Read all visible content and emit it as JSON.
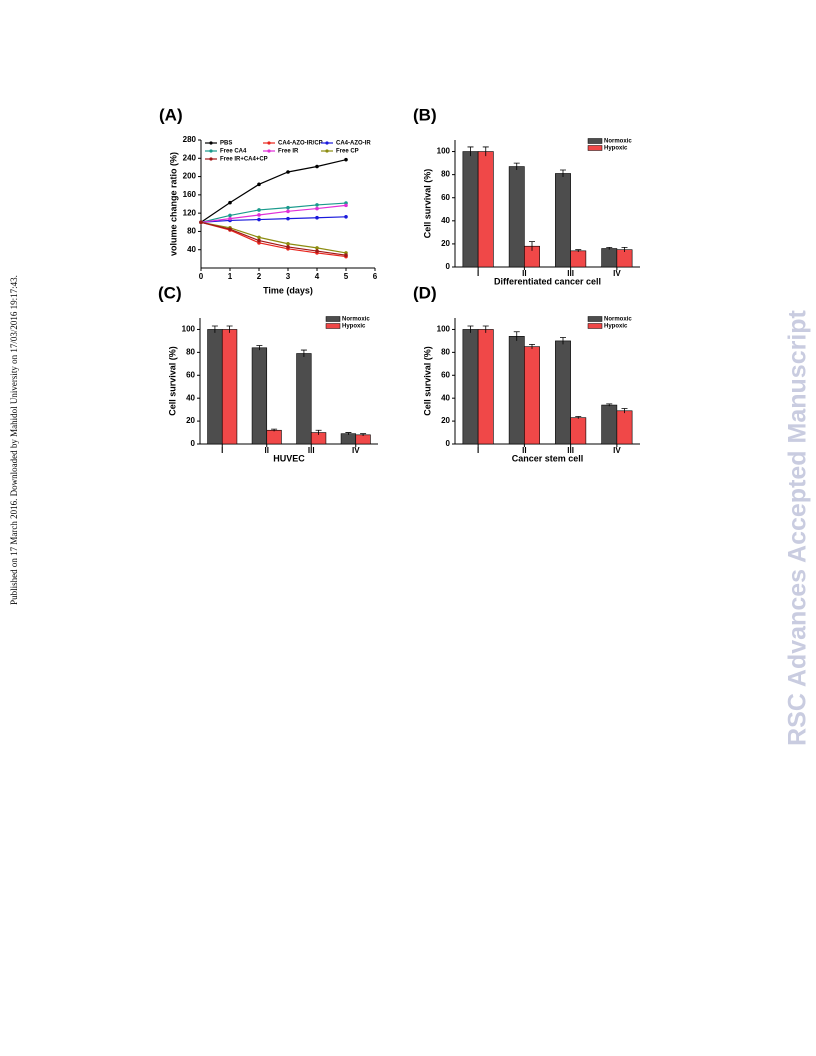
{
  "side_note": "Published on 17 March 2016. Downloaded by Mahidol University on 17/03/2016 19:17:43.",
  "watermark": "RSC Advances Accepted Manuscript",
  "chart_data": [
    {
      "type": "line",
      "panel": "(A)",
      "x_label": "Time (days)",
      "y_label": "volume change ratio (%)",
      "x": [
        0,
        1,
        2,
        3,
        4,
        5
      ],
      "xlim": [
        0,
        6
      ],
      "xticks": [
        0,
        1,
        2,
        3,
        4,
        5,
        6
      ],
      "ylim": [
        0,
        280
      ],
      "yticks": [
        40,
        80,
        120,
        160,
        200,
        240,
        280
      ],
      "series": [
        {
          "name": "PBS",
          "color": "#000000",
          "values": [
            100,
            143,
            183,
            210,
            222,
            237
          ]
        },
        {
          "name": "CA4-AZO-IR/CP",
          "color": "#e8241c",
          "values": [
            100,
            83,
            55,
            42,
            33,
            25
          ]
        },
        {
          "name": "CA4-AZO-IR",
          "color": "#1a1adc",
          "values": [
            100,
            104,
            106,
            108,
            110,
            112
          ]
        },
        {
          "name": "Free CA4",
          "color": "#1a9a8c",
          "values": [
            100,
            115,
            127,
            132,
            138,
            142
          ]
        },
        {
          "name": "Free IR",
          "color": "#e030d8",
          "values": [
            100,
            108,
            116,
            124,
            130,
            137
          ]
        },
        {
          "name": "Free CP",
          "color": "#8c8c10",
          "values": [
            100,
            88,
            67,
            53,
            44,
            33
          ]
        },
        {
          "name": "Free IR+CA4+CP",
          "color": "#a01818",
          "values": [
            100,
            85,
            60,
            46,
            37,
            28
          ]
        }
      ]
    },
    {
      "type": "bar",
      "panel": "(B)",
      "x_label": "Differentiated cancer cell",
      "y_label": "Cell survival (%)",
      "categories": [
        "I",
        "II",
        "III",
        "IV"
      ],
      "ylim": [
        0,
        110
      ],
      "yticks": [
        0,
        20,
        40,
        60,
        80,
        100
      ],
      "series": [
        {
          "name": "Normoxic",
          "color": "#4d4d4d",
          "values": [
            100,
            87,
            81,
            16
          ],
          "errors": [
            4,
            3,
            3,
            1
          ]
        },
        {
          "name": "Hypoxic",
          "color": "#f04848",
          "values": [
            100,
            18,
            14,
            15
          ],
          "errors": [
            4,
            4,
            1,
            2
          ]
        }
      ]
    },
    {
      "type": "bar",
      "panel": "(C)",
      "x_label": "HUVEC",
      "y_label": "Cell survival (%)",
      "categories": [
        "I",
        "II",
        "III",
        "IV"
      ],
      "ylim": [
        0,
        110
      ],
      "yticks": [
        0,
        20,
        40,
        60,
        80,
        100
      ],
      "series": [
        {
          "name": "Normoxic",
          "color": "#4d4d4d",
          "values": [
            100,
            84,
            79,
            9
          ],
          "errors": [
            3,
            2,
            3,
            1
          ]
        },
        {
          "name": "Hypoxic",
          "color": "#f04848",
          "values": [
            100,
            12,
            10,
            8
          ],
          "errors": [
            3,
            1,
            2,
            1
          ]
        }
      ]
    },
    {
      "type": "bar",
      "panel": "(D)",
      "x_label": "Cancer stem cell",
      "y_label": "Cell survival (%)",
      "categories": [
        "I",
        "II",
        "III",
        "IV"
      ],
      "ylim": [
        0,
        110
      ],
      "yticks": [
        0,
        20,
        40,
        60,
        80,
        100
      ],
      "series": [
        {
          "name": "Normoxic",
          "color": "#4d4d4d",
          "values": [
            100,
            94,
            90,
            34
          ],
          "errors": [
            3,
            4,
            3,
            1
          ]
        },
        {
          "name": "Hypoxic",
          "color": "#f04848",
          "values": [
            100,
            85,
            23,
            29
          ],
          "errors": [
            3,
            2,
            1,
            2
          ]
        }
      ]
    }
  ]
}
